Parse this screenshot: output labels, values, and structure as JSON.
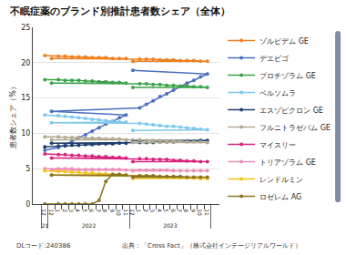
{
  "chart_data": {
    "type": "line",
    "title": "不眠症薬のブランド別推計患者数シェア（全体）",
    "y_label": "患者数シェア（%）",
    "categories": [
      [
        "21",
        "12"
      ],
      [
        "2022",
        "1"
      ],
      [
        "2022",
        "2"
      ],
      [
        "2022",
        "3"
      ],
      [
        "2022",
        "4"
      ],
      [
        "2022",
        "5"
      ],
      [
        "2022",
        "6"
      ],
      [
        "2022",
        "7"
      ],
      [
        "2022",
        "8"
      ],
      [
        "2022",
        "9"
      ],
      [
        "2022",
        "10"
      ],
      [
        "2022",
        "11"
      ],
      [
        "2022",
        "12"
      ],
      [
        "2023",
        "1"
      ],
      [
        "2023",
        "2"
      ],
      [
        "2023",
        "3"
      ],
      [
        "2023",
        "4"
      ],
      [
        "2023",
        "5"
      ],
      [
        "2023",
        "6"
      ],
      [
        "2023",
        "7"
      ],
      [
        "2023",
        "8"
      ],
      [
        "2023",
        "9"
      ],
      [
        "2023",
        "10"
      ],
      [
        "2023",
        "11"
      ],
      [
        "2023",
        "12"
      ]
    ],
    "ylim": [
      0,
      25
    ],
    "yticks": [
      0,
      5,
      10,
      15,
      20,
      25
    ],
    "grid": true,
    "legend": "right",
    "marker": "circle",
    "annotations": [
      "DLコード:240386",
      "出典：「Cross Fact」（株式会社インテージリアルワールド）"
    ],
    "series": [
      {
        "name": "ゾルピデム GE",
        "color": "#f07f1e",
        "values": [
          21.0,
          20.9,
          20.9,
          20.8,
          20.8,
          20.8,
          20.7,
          20.7,
          20.7,
          20.6,
          20.6,
          20.6,
          20.6,
          20.5,
          20.5,
          20.5,
          20.4,
          20.4,
          20.4,
          20.3,
          20.3,
          20.3,
          20.2,
          20.2,
          20.2
        ]
      },
      {
        "name": "デエビゴ",
        "color": "#4a6fc0",
        "values": [
          7.6,
          8.0,
          8.4,
          8.9,
          9.4,
          9.8,
          10.3,
          10.8,
          11.3,
          11.7,
          12.2,
          12.6,
          13.1,
          13.6,
          14.1,
          14.6,
          15.2,
          15.6,
          16.1,
          16.6,
          17.1,
          17.5,
          18.0,
          18.4,
          18.9
        ]
      },
      {
        "name": "ブロチゾラム GE",
        "color": "#3aa24a",
        "values": [
          17.6,
          17.6,
          17.5,
          17.5,
          17.5,
          17.4,
          17.4,
          17.3,
          17.3,
          17.2,
          17.2,
          17.1,
          17.1,
          17.0,
          17.0,
          16.9,
          16.9,
          16.8,
          16.8,
          16.7,
          16.7,
          16.6,
          16.6,
          16.5,
          16.5
        ]
      },
      {
        "name": "ベルソムラ",
        "color": "#7fc8ec",
        "values": [
          12.6,
          12.5,
          12.4,
          12.3,
          12.2,
          12.1,
          12.0,
          11.9,
          11.8,
          11.7,
          11.6,
          11.6,
          11.5,
          11.4,
          11.3,
          11.2,
          11.1,
          11.0,
          11.0,
          10.9,
          10.8,
          10.7,
          10.6,
          10.5,
          10.4
        ]
      },
      {
        "name": "エスゾピクロン GE",
        "color": "#1f3f6e",
        "values": [
          8.1,
          8.2,
          8.2,
          8.3,
          8.3,
          8.4,
          8.4,
          8.5,
          8.5,
          8.5,
          8.6,
          8.6,
          8.6,
          8.7,
          8.7,
          8.7,
          8.8,
          8.8,
          8.8,
          8.9,
          8.9,
          8.9,
          9.0,
          9.0,
          9.0
        ]
      },
      {
        "name": "フルニトラゼパム GE",
        "color": "#b0a890",
        "values": [
          9.5,
          9.5,
          9.4,
          9.4,
          9.4,
          9.3,
          9.3,
          9.3,
          9.2,
          9.2,
          9.2,
          9.1,
          9.1,
          9.1,
          9.0,
          9.0,
          9.0,
          8.9,
          8.9,
          8.9,
          8.8,
          8.8,
          8.8,
          8.7,
          8.7
        ]
      },
      {
        "name": "マイスリー",
        "color": "#d8247f",
        "values": [
          7.1,
          7.0,
          7.0,
          6.9,
          6.9,
          6.8,
          6.8,
          6.7,
          6.7,
          6.6,
          6.6,
          6.5,
          6.5,
          6.4,
          6.4,
          6.3,
          6.3,
          6.3,
          6.2,
          6.2,
          6.1,
          6.1,
          6.0,
          6.0,
          6.0
        ]
      },
      {
        "name": "トリアゾラム GE",
        "color": "#ef8fb8",
        "values": [
          5.0,
          5.0,
          5.0,
          5.0,
          4.9,
          4.9,
          4.9,
          4.9,
          4.9,
          4.9,
          4.9,
          4.8,
          4.8,
          4.8,
          4.8,
          4.8,
          4.8,
          4.8,
          4.7,
          4.7,
          4.7,
          4.7,
          4.7,
          4.7,
          4.7
        ]
      },
      {
        "name": "レンドルミン",
        "color": "#f5c218",
        "values": [
          4.7,
          4.6,
          4.6,
          4.5,
          4.5,
          4.4,
          4.4,
          4.3,
          4.3,
          4.2,
          4.2,
          4.1,
          4.1,
          4.0,
          4.0,
          3.9,
          3.9,
          3.9,
          3.8,
          3.8,
          3.7,
          3.7,
          3.6,
          3.6,
          3.6
        ]
      },
      {
        "name": "ロゼレム AG",
        "color": "#8b7420",
        "values": [
          0,
          0,
          0,
          0,
          0,
          0,
          0,
          0.5,
          3.2,
          4.2,
          4.2,
          4.1,
          4.1,
          4.0,
          4.0,
          4.0,
          3.9,
          3.9,
          3.9,
          3.9,
          3.8,
          3.8,
          3.8,
          3.8,
          3.8
        ]
      }
    ]
  }
}
